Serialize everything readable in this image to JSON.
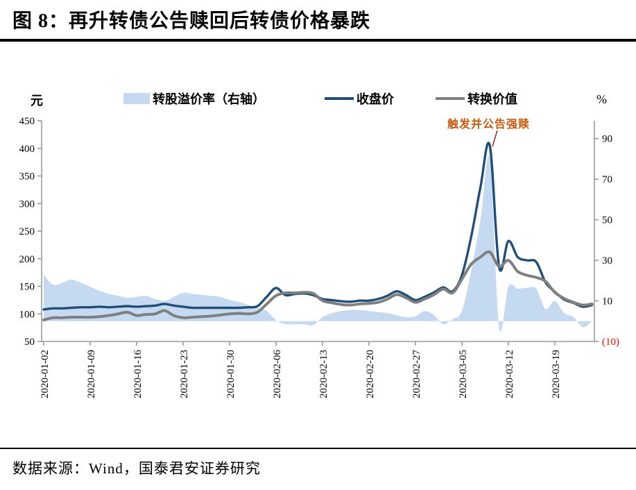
{
  "figure": {
    "title": "图 8：再升转债公告赎回后转债价格暴跌"
  },
  "source": {
    "label": "数据来源：Wind，国泰君安证券研究"
  },
  "annotation": {
    "label": "触发并公告强赎",
    "color": "#C55A11",
    "leader_color": "#963634"
  },
  "legend": {
    "items": [
      {
        "label": "转股溢价率（右轴）",
        "swatch": "area",
        "color": "#C5D9F1"
      },
      {
        "label": "收盘价",
        "swatch": "line",
        "color": "#1F4E79"
      },
      {
        "label": "转换价值",
        "swatch": "line",
        "color": "#7F7F7F"
      }
    ]
  },
  "chart_data": {
    "type": "area",
    "subtype": "combo: right-axis area + two left-axis smoothed lines",
    "title": "再升转债公告赎回后转债价格暴跌",
    "left_axis": {
      "unit": "元",
      "lim": [
        50,
        450
      ],
      "ticks": [
        450,
        400,
        350,
        300,
        250,
        200,
        150,
        100,
        50
      ]
    },
    "right_axis": {
      "unit": "%",
      "lim": [
        -10,
        98.8
      ],
      "ticks": [
        90,
        70,
        50,
        30,
        10,
        -10
      ],
      "tick_labels": [
        "90",
        "70",
        "50",
        "30",
        "10",
        "(10)"
      ],
      "negative_label_color": "#FF0000"
    },
    "x_tick_labels": [
      "2020-01-02",
      "2020-01-09",
      "2020-01-16",
      "2020-01-23",
      "2020-01-30",
      "2020-02-06",
      "2020-02-13",
      "2020-02-20",
      "2020-02-27",
      "2020-03-05",
      "2020-03-12",
      "2020-03-19"
    ],
    "x_tick_step": 5,
    "grid": false,
    "legend_position": "top",
    "axis_color": "#999999",
    "series": [
      {
        "name": "转股溢价率（右轴）",
        "type": "area",
        "axis": "right",
        "color": "#C5D9F1",
        "values": [
          23,
          18,
          19,
          20.5,
          19,
          17,
          15,
          13.5,
          12.5,
          11.5,
          12,
          12.5,
          11,
          10,
          12,
          14,
          13.5,
          13,
          12.5,
          12,
          10.5,
          9.5,
          8,
          6.5,
          5,
          0.5,
          -1.5,
          -1.5,
          -1.5,
          -2,
          2,
          4,
          5,
          5.5,
          5.5,
          5,
          4.5,
          4,
          3,
          2,
          2.5,
          5,
          3,
          -1.5,
          1,
          5,
          25,
          50,
          80,
          -3,
          17,
          16,
          16.5,
          16,
          6,
          10,
          4,
          2,
          -3,
          0
        ]
      },
      {
        "name": "收盘价",
        "type": "line",
        "axis": "left",
        "color": "#1F4E79",
        "values": [
          108,
          110,
          110,
          111,
          112,
          112,
          113,
          112,
          113,
          114,
          113,
          114,
          115,
          118,
          115,
          113,
          111,
          111,
          111,
          111,
          111,
          111,
          112,
          114,
          131,
          147,
          134,
          136,
          137,
          134,
          127,
          125,
          123,
          122,
          124,
          124,
          127,
          133,
          141,
          134,
          125,
          131,
          139,
          148,
          141,
          170,
          240,
          330,
          405,
          185,
          232,
          203,
          197,
          194,
          157,
          140,
          126,
          120,
          113,
          116
        ]
      },
      {
        "name": "转换价值",
        "type": "line",
        "axis": "left",
        "color": "#7F7F7F",
        "values": [
          89,
          93,
          93,
          94,
          94,
          94,
          95,
          97,
          100,
          103,
          97,
          99,
          100,
          106,
          97,
          93,
          94,
          95,
          96,
          98,
          100,
          101,
          100,
          103,
          118,
          133,
          138,
          138,
          139,
          137,
          124,
          120,
          117,
          116,
          118,
          119,
          121,
          127,
          135,
          129,
          121,
          127,
          135,
          145,
          138,
          163,
          190,
          203,
          212,
          186,
          197,
          177,
          170,
          166,
          159,
          139,
          128,
          121,
          116,
          118
        ]
      }
    ],
    "annotation": {
      "text": "触发并公告强赎",
      "points_to": "2020-03-10 收盘价 peak ≈ 405"
    }
  }
}
